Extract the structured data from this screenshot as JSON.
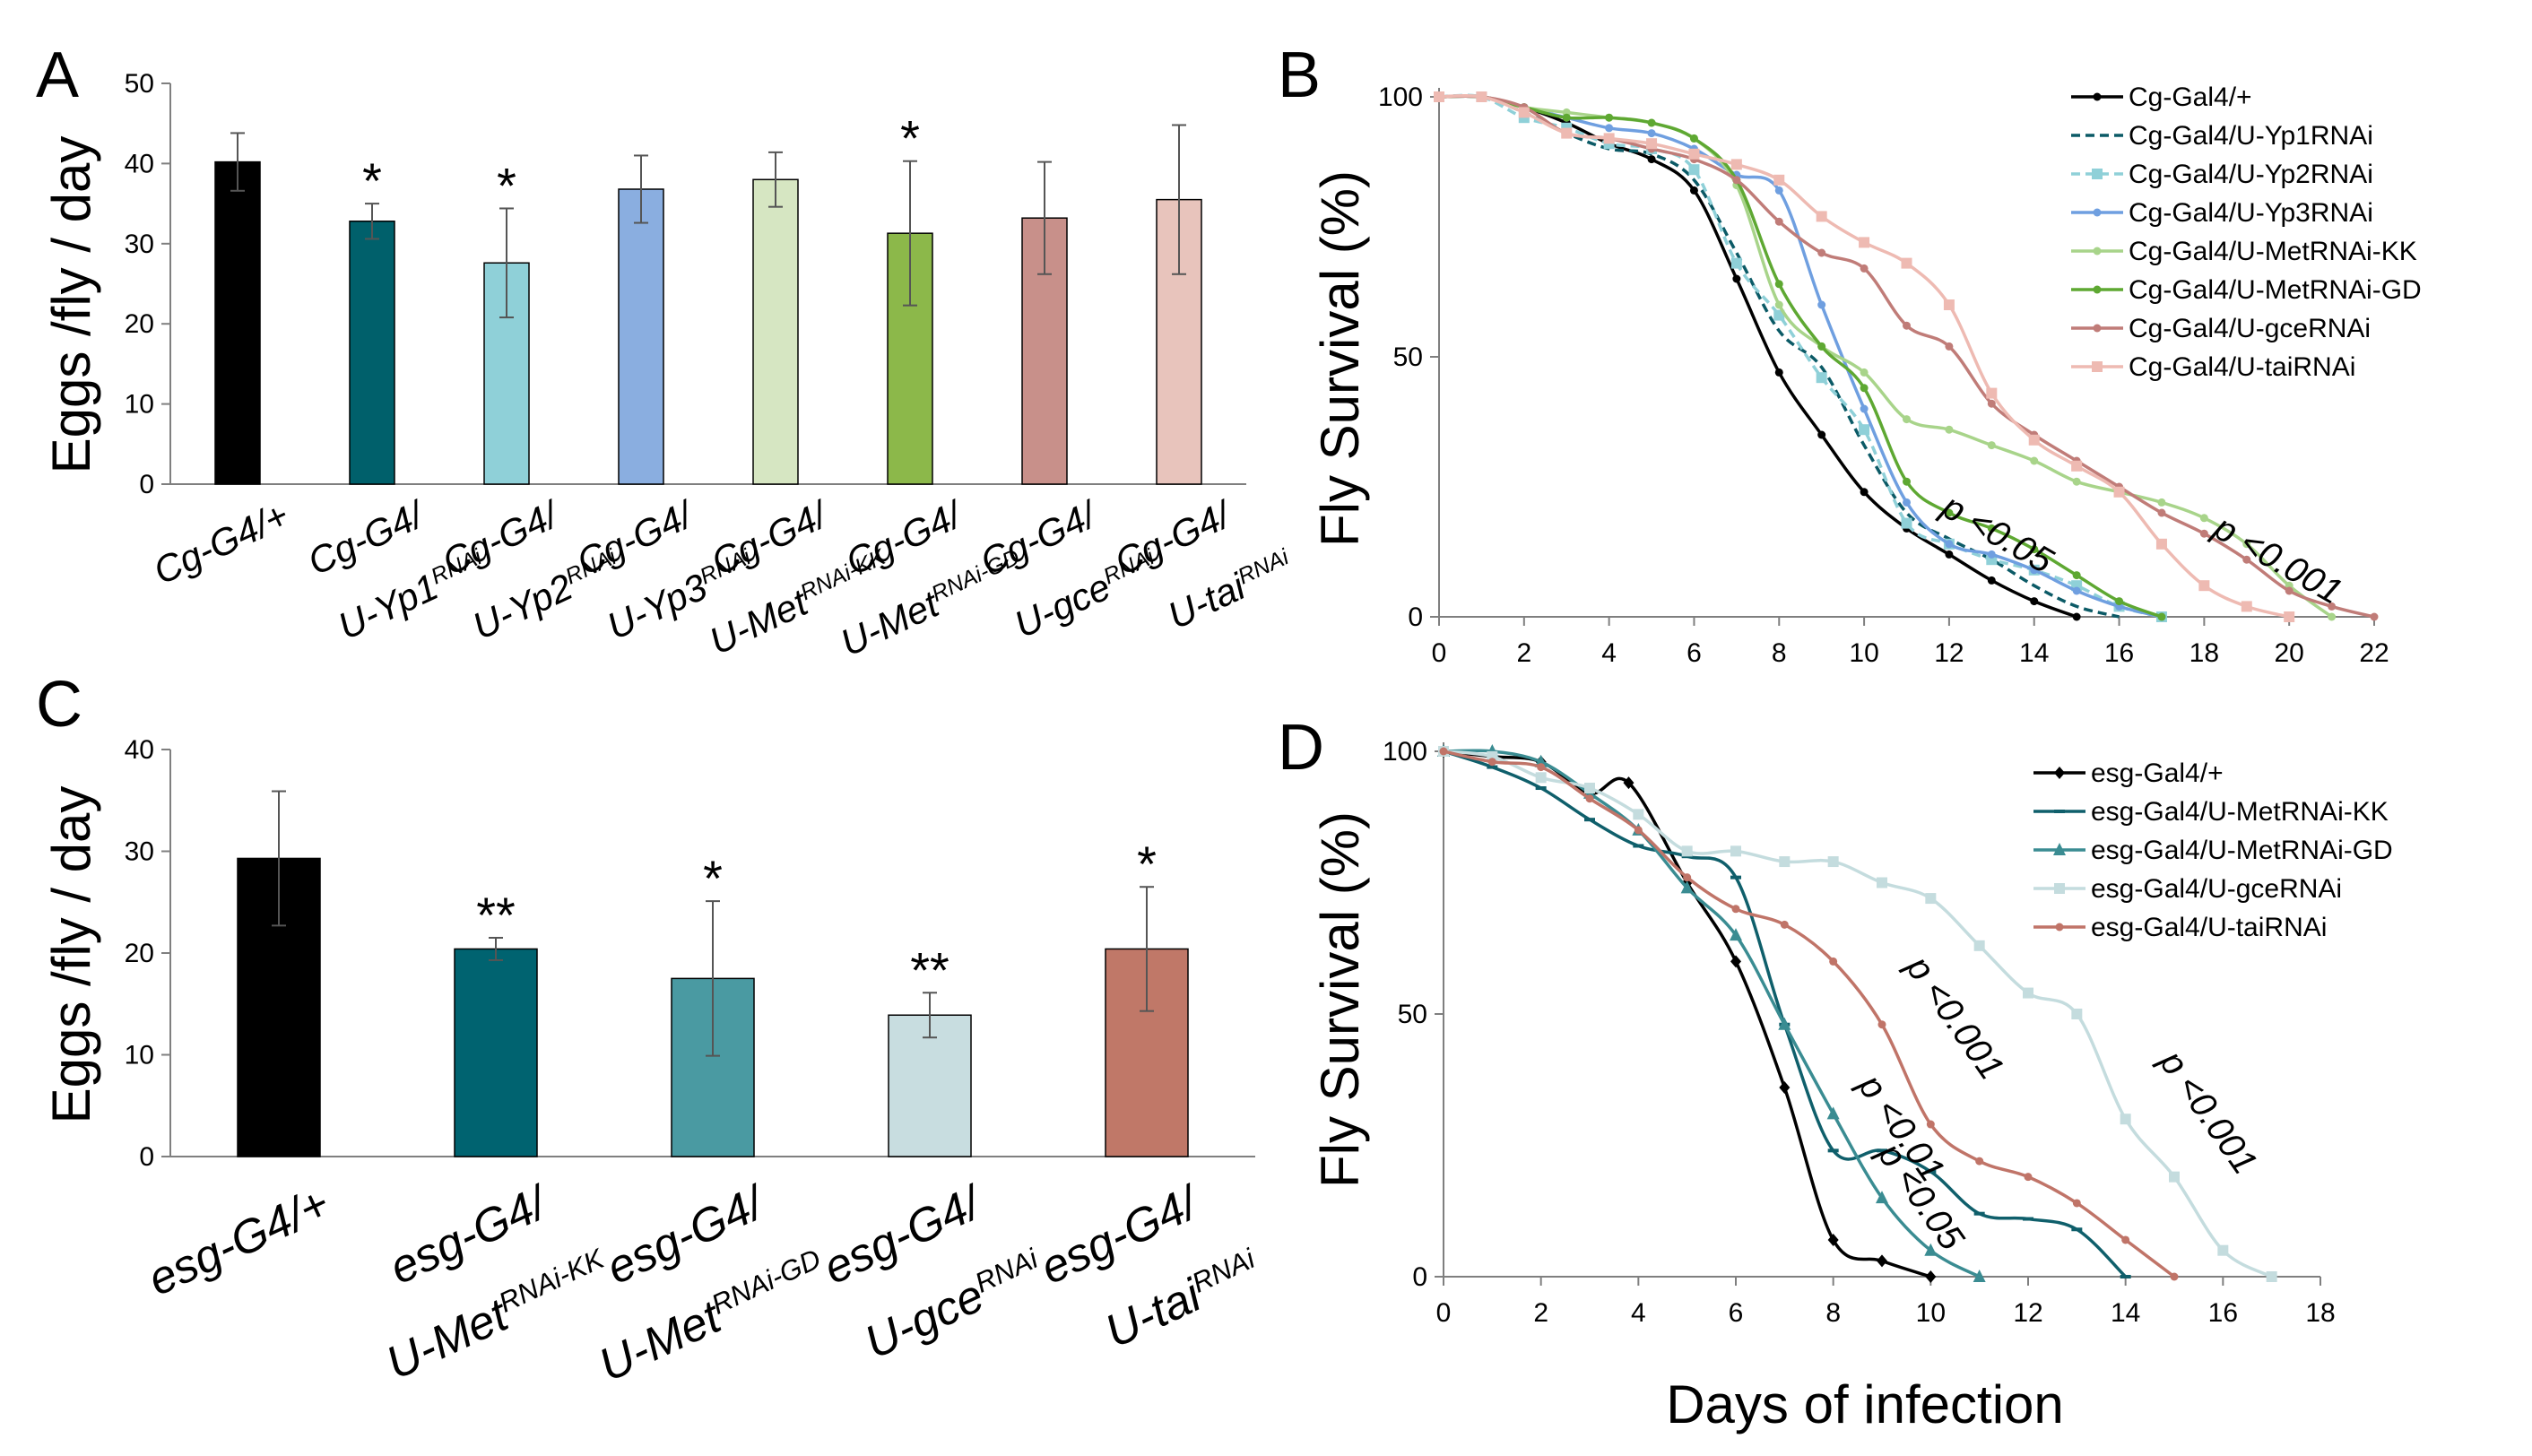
{
  "chart_data": [
    {
      "panel": "A",
      "type": "bar",
      "ylabel": "Eggs /fly / day",
      "ylim": [
        0,
        50
      ],
      "yticks": [
        0,
        10,
        20,
        30,
        40,
        50
      ],
      "categories": [
        {
          "line1": "Cg-G4/+",
          "line2": "",
          "sup": ""
        },
        {
          "line1": "Cg-G4/",
          "line2": "U-Yp1",
          "sup": "RNAi"
        },
        {
          "line1": "Cg-G4/",
          "line2": "U-Yp2",
          "sup": "RNAi"
        },
        {
          "line1": "Cg-G4/",
          "line2": "U-Yp3",
          "sup": "RNAi"
        },
        {
          "line1": "Cg-G4/",
          "line2": "U-Met",
          "sup": "RNAi-KK"
        },
        {
          "line1": "Cg-G4/",
          "line2": "U-Met",
          "sup": "RNAi-GD"
        },
        {
          "line1": "Cg-G4/",
          "line2": "U-gce",
          "sup": "RNAi"
        },
        {
          "line1": "Cg-G4/",
          "line2": "U-tai",
          "sup": "RNAi"
        }
      ],
      "values": [
        40.2,
        32.8,
        27.6,
        36.8,
        38.0,
        31.3,
        33.2,
        35.5
      ],
      "errors": [
        3.6,
        2.2,
        6.8,
        4.2,
        3.4,
        9.0,
        7.0,
        9.3
      ],
      "significance": [
        "",
        "*",
        "*",
        "",
        "",
        "*",
        "",
        ""
      ],
      "colors": [
        "#000000",
        "#00606b",
        "#8fd0d8",
        "#8aaee0",
        "#d6e6c2",
        "#8cb84a",
        "#c8908a",
        "#e8c4bc"
      ]
    },
    {
      "panel": "B",
      "type": "line",
      "ylabel": "Fly Survival (%)",
      "xlim": [
        0,
        22
      ],
      "ylim": [
        0,
        100
      ],
      "xticks": [
        0,
        2,
        4,
        6,
        8,
        10,
        12,
        14,
        16,
        18,
        20,
        22
      ],
      "yticks": [
        0,
        50,
        100
      ],
      "series": [
        {
          "name": "Cg-Gal4/+",
          "color": "#000000",
          "marker": "dot",
          "dash": "",
          "x": [
            0,
            1,
            2,
            3,
            4,
            5,
            6,
            7,
            8,
            9,
            10,
            11,
            12,
            13,
            14,
            15
          ],
          "y": [
            100,
            100,
            98,
            95,
            91,
            88,
            82,
            65,
            47,
            35,
            24,
            17,
            12,
            7,
            3,
            0
          ]
        },
        {
          "name": "Cg-Gal4/U-Yp1RNAi",
          "color": "#0b5a66",
          "marker": "none",
          "dash": "10,6",
          "x": [
            0,
            1,
            2,
            3,
            4,
            5,
            6,
            7,
            8,
            9,
            10,
            11,
            12,
            13,
            14,
            15,
            16
          ],
          "y": [
            100,
            100,
            97,
            93,
            90,
            89,
            84,
            70,
            55,
            48,
            33,
            20,
            15,
            11,
            6,
            2,
            0
          ]
        },
        {
          "name": "Cg-Gal4/U-Yp2RNAi",
          "color": "#8fd0d8",
          "marker": "square",
          "dash": "10,6",
          "x": [
            0,
            1,
            2,
            3,
            4,
            5,
            6,
            7,
            8,
            9,
            10,
            11,
            12,
            13,
            14,
            15,
            16,
            17
          ],
          "y": [
            100,
            100,
            96,
            94,
            91,
            90,
            86,
            68,
            58,
            46,
            36,
            18,
            14,
            11,
            9,
            6,
            2,
            0
          ]
        },
        {
          "name": "Cg-Gal4/U-Yp3RNAi",
          "color": "#6f9fe0",
          "marker": "dot",
          "dash": "",
          "x": [
            0,
            1,
            2,
            3,
            4,
            5,
            6,
            7,
            8,
            9,
            10,
            11,
            12,
            13,
            14,
            15,
            16,
            17
          ],
          "y": [
            100,
            100,
            98,
            96,
            94,
            93,
            90,
            85,
            82,
            60,
            40,
            22,
            14,
            12,
            9,
            5,
            2,
            0
          ]
        },
        {
          "name": "Cg-Gal4/U-MetRNAi-KK",
          "color": "#a8d48a",
          "marker": "dot",
          "dash": "",
          "x": [
            0,
            1,
            2,
            3,
            4,
            5,
            6,
            7,
            8,
            9,
            10,
            11,
            12,
            13,
            14,
            15,
            16,
            17,
            18,
            19,
            20,
            21
          ],
          "y": [
            100,
            100,
            98,
            97,
            96,
            95,
            92,
            83,
            60,
            52,
            47,
            38,
            36,
            33,
            30,
            26,
            24,
            22,
            19,
            14,
            6,
            0
          ]
        },
        {
          "name": "Cg-Gal4/U-MetRNAi-GD",
          "color": "#5ea832",
          "marker": "dot",
          "dash": "",
          "x": [
            0,
            1,
            2,
            3,
            4,
            5,
            6,
            7,
            8,
            9,
            10,
            11,
            12,
            13,
            14,
            15,
            16,
            17
          ],
          "y": [
            100,
            100,
            98,
            96,
            96,
            95,
            92,
            84,
            64,
            52,
            44,
            26,
            20,
            17,
            13,
            8,
            3,
            0
          ]
        },
        {
          "name": "Cg-Gal4/U-gceRNAi",
          "color": "#c07c78",
          "marker": "dot",
          "dash": "",
          "x": [
            0,
            1,
            2,
            3,
            4,
            5,
            6,
            7,
            8,
            9,
            10,
            11,
            12,
            13,
            14,
            15,
            16,
            17,
            18,
            19,
            20,
            21,
            22
          ],
          "y": [
            100,
            100,
            98,
            93,
            92,
            90,
            88,
            84,
            76,
            70,
            67,
            56,
            52,
            41,
            35,
            30,
            25,
            20,
            16,
            11,
            5,
            2,
            0
          ]
        },
        {
          "name": "Cg-Gal4/U-taiRNAi",
          "color": "#eebab2",
          "marker": "square",
          "dash": "",
          "x": [
            0,
            1,
            2,
            3,
            4,
            5,
            6,
            7,
            8,
            9,
            10,
            11,
            12,
            13,
            14,
            15,
            16,
            17,
            18,
            19,
            20
          ],
          "y": [
            100,
            100,
            97,
            93,
            92,
            91,
            89,
            87,
            84,
            77,
            72,
            68,
            60,
            43,
            34,
            29,
            24,
            14,
            6,
            2,
            0
          ]
        }
      ],
      "annotations": [
        {
          "text": "p <0.05",
          "x": 13,
          "y": 14
        },
        {
          "text": "p <0.001",
          "x": 19.6,
          "y": 9
        }
      ]
    },
    {
      "panel": "C",
      "type": "bar",
      "ylabel": "Eggs /fly / day",
      "ylim": [
        0,
        40
      ],
      "yticks": [
        0,
        10,
        20,
        30,
        40
      ],
      "categories": [
        {
          "line1": "esg-G4/+",
          "line2": "",
          "sup": ""
        },
        {
          "line1": "esg-G4/",
          "line2": "U-Met",
          "sup": "RNAi-KK"
        },
        {
          "line1": "esg-G4/",
          "line2": "U-Met",
          "sup": "RNAi-GD"
        },
        {
          "line1": "esg-G4/",
          "line2": "U-gce",
          "sup": "RNAi"
        },
        {
          "line1": "esg-G4/",
          "line2": "U-tai",
          "sup": "RNAi"
        }
      ],
      "values": [
        29.3,
        20.4,
        17.5,
        13.9,
        20.4
      ],
      "errors": [
        6.6,
        1.1,
        7.6,
        2.2,
        6.1
      ],
      "significance": [
        "",
        "**",
        "*",
        "**",
        "*"
      ],
      "colors": [
        "#000000",
        "#006370",
        "#4a9aa2",
        "#c8dde0",
        "#c07868"
      ]
    },
    {
      "panel": "D",
      "type": "line",
      "ylabel": "Fly Survival (%)",
      "xlabel": "Days of infection",
      "xlim": [
        0,
        18
      ],
      "ylim": [
        0,
        100
      ],
      "xticks": [
        0,
        2,
        4,
        6,
        8,
        10,
        12,
        14,
        16,
        18
      ],
      "yticks": [
        0,
        50,
        100
      ],
      "series": [
        {
          "name": "esg-Gal4/+",
          "color": "#000000",
          "marker": "diamond",
          "dash": "",
          "x": [
            0,
            1,
            2,
            3,
            3.8,
            5,
            6,
            7,
            8,
            9,
            10
          ],
          "y": [
            100,
            99,
            98,
            92,
            94,
            75,
            60,
            36,
            7,
            3,
            0
          ]
        },
        {
          "name": "esg-Gal4/U-MetRNAi-KK",
          "color": "#0f5f6b",
          "marker": "dash",
          "dash": "",
          "x": [
            0,
            1,
            2,
            3,
            4,
            5,
            6,
            7,
            8,
            9,
            10,
            11,
            12,
            13,
            14
          ],
          "y": [
            100,
            97,
            93,
            87,
            82,
            80,
            76,
            48,
            24,
            24,
            20,
            12,
            11,
            9,
            0
          ]
        },
        {
          "name": "esg-Gal4/U-MetRNAi-GD",
          "color": "#3a8c92",
          "marker": "triangle",
          "dash": "",
          "x": [
            0,
            1,
            2,
            3,
            4,
            5,
            6,
            7,
            8,
            9,
            10,
            11
          ],
          "y": [
            100,
            100,
            98,
            92,
            85,
            74,
            65,
            48,
            31,
            15,
            5,
            0
          ]
        },
        {
          "name": "esg-Gal4/U-gceRNAi",
          "color": "#c4dcde",
          "marker": "square",
          "dash": "",
          "x": [
            0,
            1,
            2,
            3,
            4,
            5,
            6,
            7,
            8,
            9,
            10,
            11,
            12,
            13,
            14,
            15,
            16,
            17
          ],
          "y": [
            100,
            99,
            95,
            93,
            88,
            81,
            81,
            79,
            79,
            75,
            72,
            63,
            54,
            50,
            30,
            19,
            5,
            0
          ]
        },
        {
          "name": "esg-Gal4/U-taiRNAi",
          "color": "#c07468",
          "marker": "dot",
          "dash": "",
          "x": [
            0,
            1,
            2,
            3,
            4,
            5,
            6,
            7,
            8,
            9,
            10,
            11,
            12,
            13,
            14,
            15
          ],
          "y": [
            100,
            98,
            97,
            91,
            85,
            76,
            70,
            67,
            60,
            48,
            29,
            22,
            19,
            14,
            7,
            0
          ]
        }
      ],
      "annotations": [
        {
          "text": "p <0.001",
          "x": 10.3,
          "y": 48
        },
        {
          "text": "p <0.01",
          "x": 9.2,
          "y": 27
        },
        {
          "text": "p <0.05",
          "x": 9.6,
          "y": 14
        },
        {
          "text": "p <0.001",
          "x": 15.5,
          "y": 30
        }
      ]
    }
  ]
}
